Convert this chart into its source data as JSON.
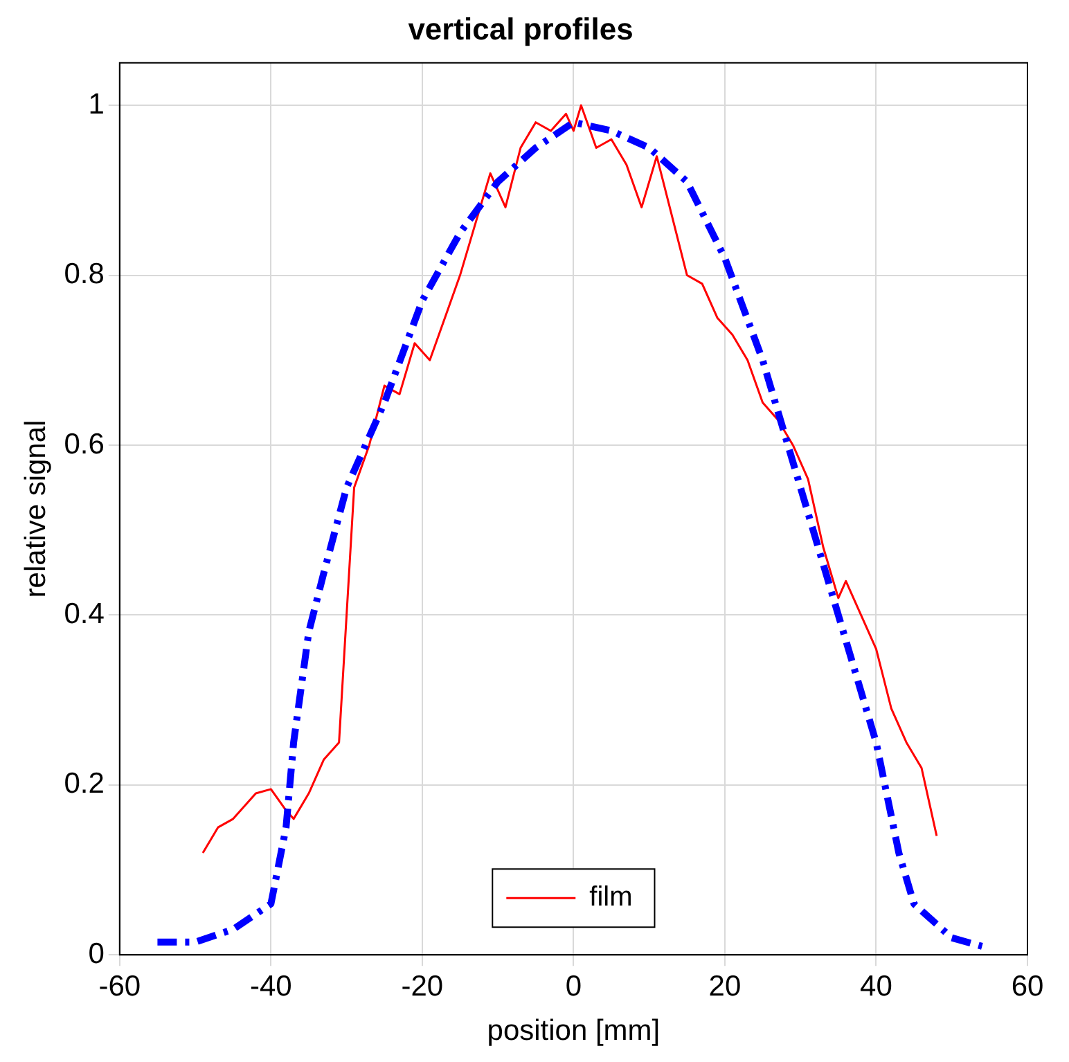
{
  "chart_data": {
    "type": "line",
    "title": "vertical profiles",
    "xlabel": "position [mm]",
    "ylabel": "relative signal",
    "xlim": [
      -60,
      60
    ],
    "xticks": [
      -60,
      -40,
      -20,
      0,
      20,
      40,
      60
    ],
    "ylim": [
      0,
      1.05
    ],
    "yticks": [
      0,
      0.2,
      0.4,
      0.6,
      0.8,
      1
    ],
    "grid": true,
    "legend": "bottom",
    "marker": "none",
    "series": [
      {
        "color": "#0000ff",
        "line_style": "dashed",
        "x": [
          -55,
          -50,
          -45,
          -40,
          -38,
          -37,
          -35,
          -33,
          -30,
          -25,
          -20,
          -15,
          -10,
          -5,
          0,
          5,
          10,
          15,
          20,
          25,
          30,
          35,
          40,
          43,
          45,
          50,
          54
        ],
        "values": [
          0.015,
          0.015,
          0.03,
          0.06,
          0.15,
          0.25,
          0.38,
          0.45,
          0.55,
          0.65,
          0.77,
          0.85,
          0.91,
          0.95,
          0.98,
          0.97,
          0.95,
          0.91,
          0.82,
          0.7,
          0.55,
          0.4,
          0.25,
          0.12,
          0.06,
          0.02,
          0.01
        ]
      },
      {
        "name": "film",
        "color": "#ff0000",
        "line_style": "solid",
        "x": [
          -49,
          -47,
          -45,
          -42,
          -40,
          -38,
          -37,
          -35,
          -33,
          -31,
          -30,
          -29,
          -27,
          -25,
          -23,
          -21,
          -19,
          -17,
          -15,
          -13,
          -11,
          -9,
          -7,
          -5,
          -3,
          -1,
          0,
          1,
          3,
          5,
          7,
          9,
          11,
          13,
          15,
          17,
          19,
          21,
          23,
          25,
          27,
          29,
          31,
          33,
          35,
          36,
          38,
          40,
          42,
          44,
          46,
          47,
          48
        ],
        "values": [
          0.12,
          0.15,
          0.16,
          0.19,
          0.195,
          0.17,
          0.16,
          0.19,
          0.23,
          0.25,
          0.4,
          0.55,
          0.6,
          0.67,
          0.66,
          0.72,
          0.7,
          0.75,
          0.8,
          0.86,
          0.92,
          0.88,
          0.95,
          0.98,
          0.97,
          0.99,
          0.97,
          1.0,
          0.95,
          0.96,
          0.93,
          0.88,
          0.94,
          0.87,
          0.8,
          0.79,
          0.75,
          0.73,
          0.7,
          0.65,
          0.63,
          0.6,
          0.56,
          0.48,
          0.42,
          0.44,
          0.4,
          0.36,
          0.29,
          0.25,
          0.22,
          0.18,
          0.14
        ]
      }
    ]
  }
}
